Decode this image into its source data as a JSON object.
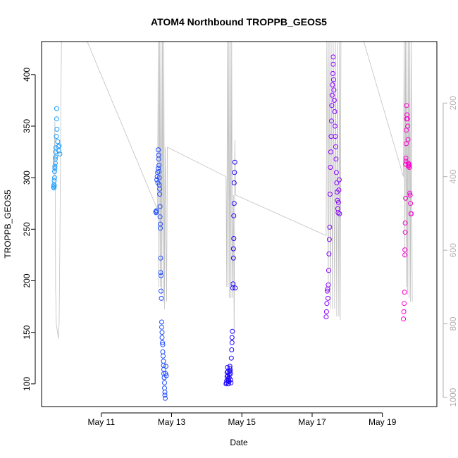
{
  "chart_data": {
    "type": "scatter",
    "title": "ATOM4 Northbound TROPPB_GEOS5",
    "xlabel": "Date",
    "ylabel": "TROPPB_GEOS5",
    "x_unit": "days since May 10 00:00 (2018)",
    "xlim": [
      9.3,
      20.55
    ],
    "ylim": [
      78,
      432
    ],
    "y_ticks": [
      100,
      150,
      200,
      250,
      300,
      350,
      400
    ],
    "x_ticks": [
      {
        "label": "May 11",
        "value": 11
      },
      {
        "label": "May 13",
        "value": 13
      },
      {
        "label": "May 15",
        "value": 15
      },
      {
        "label": "May 17",
        "value": 17
      },
      {
        "label": "May 19",
        "value": 19
      }
    ],
    "secondary_axis": {
      "side": "right",
      "label": "",
      "ticks": [
        200,
        400,
        600,
        800,
        1000
      ],
      "range": [
        32.9,
        1024.9
      ],
      "direction": "inverted",
      "color": "#b0b0b0"
    },
    "color_gradient": {
      "start": "#00b3ff",
      "mid": "#0000ff",
      "end": "#ff00d0"
    },
    "background_trace": {
      "color": "#c0c0c0",
      "description": "altitude profile line (right axis, inverted)",
      "points": [
        [
          9.65,
          420
        ],
        [
          9.68,
          250
        ],
        [
          9.7,
          700
        ],
        [
          9.72,
          800
        ],
        [
          9.75,
          820
        ],
        [
          9.78,
          840
        ],
        [
          9.8,
          800
        ],
        [
          9.82,
          600
        ],
        [
          9.85,
          200
        ],
        [
          9.87,
          10
        ],
        [
          10.5,
          10
        ],
        [
          12.6,
          490
        ],
        [
          12.62,
          10
        ],
        [
          12.64,
          700
        ],
        [
          12.66,
          10
        ],
        [
          12.68,
          700
        ],
        [
          12.7,
          10
        ],
        [
          12.72,
          720
        ],
        [
          12.74,
          10
        ],
        [
          12.76,
          740
        ],
        [
          12.78,
          10
        ],
        [
          12.8,
          760
        ],
        [
          12.82,
          320
        ],
        [
          12.86,
          740
        ],
        [
          12.88,
          320
        ],
        [
          14.55,
          400
        ],
        [
          14.57,
          700
        ],
        [
          14.59,
          10
        ],
        [
          14.61,
          700
        ],
        [
          14.63,
          10
        ],
        [
          14.65,
          730
        ],
        [
          14.67,
          10
        ],
        [
          14.69,
          730
        ],
        [
          14.71,
          10
        ],
        [
          14.73,
          730
        ],
        [
          14.76,
          450
        ],
        [
          14.78,
          830
        ],
        [
          14.8,
          300
        ],
        [
          14.82,
          450
        ],
        [
          17.4,
          560
        ],
        [
          17.42,
          10
        ],
        [
          17.46,
          700
        ],
        [
          17.48,
          10
        ],
        [
          17.52,
          760
        ],
        [
          17.54,
          10
        ],
        [
          17.58,
          760
        ],
        [
          17.6,
          10
        ],
        [
          17.64,
          760
        ],
        [
          17.66,
          10
        ],
        [
          17.7,
          780
        ],
        [
          17.72,
          10
        ],
        [
          17.76,
          780
        ],
        [
          17.78,
          10
        ],
        [
          17.8,
          790
        ],
        [
          17.82,
          10
        ],
        [
          18.4,
          10
        ],
        [
          19.6,
          400
        ],
        [
          19.62,
          10
        ],
        [
          19.64,
          620
        ],
        [
          19.66,
          10
        ],
        [
          19.68,
          700
        ],
        [
          19.7,
          10
        ],
        [
          19.72,
          720
        ],
        [
          19.74,
          10
        ],
        [
          19.76,
          730
        ],
        [
          19.78,
          10
        ],
        [
          19.8,
          740
        ],
        [
          19.82,
          10
        ],
        [
          19.85,
          740
        ]
      ]
    },
    "series": [
      {
        "color": "#1a9eff",
        "points": [
          [
            9.64,
            291
          ],
          [
            9.65,
            293
          ],
          [
            9.65,
            290
          ],
          [
            9.66,
            292
          ],
          [
            9.66,
            297
          ],
          [
            9.67,
            300
          ],
          [
            9.67,
            306
          ],
          [
            9.68,
            309
          ],
          [
            9.68,
            311
          ],
          [
            9.69,
            314
          ],
          [
            9.69,
            318
          ],
          [
            9.7,
            320
          ],
          [
            9.7,
            325
          ],
          [
            9.71,
            329
          ],
          [
            9.72,
            340
          ],
          [
            9.73,
            357
          ],
          [
            9.73,
            367
          ],
          [
            9.74,
            347
          ],
          [
            9.76,
            335
          ],
          [
            9.78,
            330
          ],
          [
            9.79,
            326
          ],
          [
            9.8,
            331
          ],
          [
            9.82,
            323
          ]
        ]
      },
      {
        "color": "#1f4dff",
        "points": [
          [
            12.55,
            267
          ],
          [
            12.56,
            266
          ],
          [
            12.57,
            268
          ],
          [
            12.58,
            298
          ],
          [
            12.59,
            301
          ],
          [
            12.6,
            305
          ],
          [
            12.61,
            295
          ],
          [
            12.62,
            309
          ],
          [
            12.62,
            327
          ],
          [
            12.63,
            322
          ],
          [
            12.63,
            318
          ],
          [
            12.64,
            312
          ],
          [
            12.64,
            306
          ],
          [
            12.65,
            300
          ],
          [
            12.65,
            293
          ],
          [
            12.66,
            289
          ],
          [
            12.66,
            284
          ],
          [
            12.67,
            272
          ],
          [
            12.67,
            262
          ],
          [
            12.68,
            255
          ],
          [
            12.68,
            251
          ],
          [
            12.69,
            222
          ],
          [
            12.69,
            208
          ],
          [
            12.7,
            205
          ],
          [
            12.7,
            190
          ],
          [
            12.71,
            183
          ],
          [
            12.72,
            160
          ],
          [
            12.72,
            155
          ],
          [
            12.73,
            150
          ],
          [
            12.73,
            145
          ],
          [
            12.74,
            140
          ],
          [
            12.75,
            138
          ],
          [
            12.75,
            131
          ],
          [
            12.76,
            127
          ],
          [
            12.77,
            122
          ],
          [
            12.77,
            118
          ],
          [
            12.78,
            114
          ],
          [
            12.78,
            110
          ],
          [
            12.79,
            106
          ],
          [
            12.8,
            101
          ],
          [
            12.8,
            96
          ],
          [
            12.81,
            92
          ],
          [
            12.81,
            89
          ],
          [
            12.82,
            86
          ],
          [
            12.83,
            110
          ],
          [
            12.84,
            117
          ],
          [
            12.85,
            108
          ]
        ]
      },
      {
        "color": "#1a00ff",
        "points": [
          [
            14.55,
            100
          ],
          [
            14.56,
            101
          ],
          [
            14.57,
            103
          ],
          [
            14.58,
            107
          ],
          [
            14.58,
            111
          ],
          [
            14.59,
            116
          ],
          [
            14.6,
            112
          ],
          [
            14.6,
            108
          ],
          [
            14.61,
            105
          ],
          [
            14.62,
            103
          ],
          [
            14.62,
            100
          ],
          [
            14.63,
            102
          ],
          [
            14.64,
            106
          ],
          [
            14.64,
            109
          ],
          [
            14.65,
            112
          ],
          [
            14.66,
            115
          ],
          [
            14.66,
            117
          ],
          [
            14.67,
            113
          ],
          [
            14.68,
            110
          ],
          [
            14.68,
            104
          ],
          [
            14.69,
            101
          ],
          [
            14.7,
            125
          ],
          [
            14.71,
            133
          ],
          [
            14.72,
            140
          ],
          [
            14.72,
            145
          ],
          [
            14.73,
            151
          ],
          [
            14.74,
            193
          ],
          [
            14.75,
            197
          ],
          [
            14.76,
            222
          ],
          [
            14.76,
            231
          ],
          [
            14.77,
            241
          ],
          [
            14.77,
            263
          ],
          [
            14.78,
            275
          ],
          [
            14.78,
            295
          ],
          [
            14.79,
            305
          ],
          [
            14.8,
            315
          ],
          [
            14.81,
            193
          ]
        ]
      },
      {
        "color": "#8a00ff",
        "points": [
          [
            17.4,
            165
          ],
          [
            17.41,
            170
          ],
          [
            17.42,
            178
          ],
          [
            17.43,
            190
          ],
          [
            17.44,
            192
          ],
          [
            17.45,
            183
          ],
          [
            17.46,
            196
          ],
          [
            17.47,
            210
          ],
          [
            17.48,
            226
          ],
          [
            17.49,
            240
          ],
          [
            17.5,
            252
          ],
          [
            17.51,
            284
          ],
          [
            17.52,
            310
          ],
          [
            17.53,
            325
          ],
          [
            17.54,
            340
          ],
          [
            17.55,
            355
          ],
          [
            17.56,
            370
          ],
          [
            17.57,
            380
          ],
          [
            17.58,
            390
          ],
          [
            17.59,
            401
          ],
          [
            17.6,
            410
          ],
          [
            17.6,
            417
          ],
          [
            17.61,
            395
          ],
          [
            17.62,
            385
          ],
          [
            17.63,
            375
          ],
          [
            17.64,
            364
          ],
          [
            17.65,
            350
          ],
          [
            17.66,
            340
          ],
          [
            17.67,
            330
          ],
          [
            17.68,
            318
          ],
          [
            17.69,
            305
          ],
          [
            17.7,
            295
          ],
          [
            17.71,
            286
          ],
          [
            17.72,
            278
          ],
          [
            17.73,
            270
          ],
          [
            17.74,
            266
          ],
          [
            17.75,
            276
          ],
          [
            17.76,
            288
          ],
          [
            17.77,
            298
          ],
          [
            17.78,
            265
          ]
        ]
      },
      {
        "color": "#ff00d0",
        "points": [
          [
            19.6,
            163
          ],
          [
            19.61,
            170
          ],
          [
            19.62,
            178
          ],
          [
            19.63,
            189
          ],
          [
            19.64,
            225
          ],
          [
            19.64,
            230
          ],
          [
            19.65,
            247
          ],
          [
            19.65,
            256
          ],
          [
            19.66,
            280
          ],
          [
            19.66,
            313
          ],
          [
            19.67,
            316
          ],
          [
            19.67,
            319
          ],
          [
            19.68,
            333
          ],
          [
            19.68,
            346
          ],
          [
            19.69,
            357
          ],
          [
            19.69,
            370
          ],
          [
            19.7,
            361
          ],
          [
            19.71,
            357
          ],
          [
            19.72,
            350
          ],
          [
            19.73,
            337
          ],
          [
            19.74,
            314
          ],
          [
            19.74,
            311
          ],
          [
            19.75,
            312
          ],
          [
            19.76,
            313
          ],
          [
            19.77,
            310
          ],
          [
            19.78,
            285
          ],
          [
            19.79,
            283
          ],
          [
            19.8,
            275
          ],
          [
            19.81,
            265
          ],
          [
            19.82,
            265
          ]
        ]
      }
    ]
  }
}
